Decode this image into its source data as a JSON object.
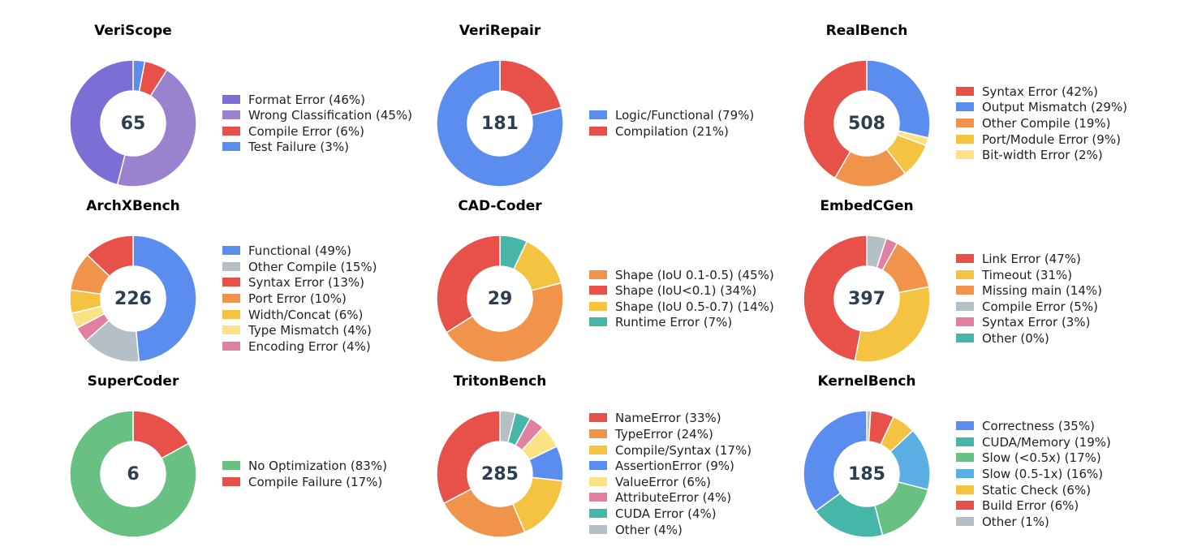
{
  "colors": {
    "purple_dark": "#7b6fd6",
    "purple_light": "#9b82cf",
    "red": "#e8504a",
    "blue": "#5b8def",
    "orange": "#f0944b",
    "yellow": "#f5c342",
    "light_yellow": "#fbe285",
    "gray": "#b4c0c6",
    "pink": "#e07f9f",
    "teal": "#45b6a7",
    "green": "#68c083",
    "sky": "#5aaee3",
    "center_text": "#2c3e50"
  },
  "chart_data": [
    {
      "type": "pie",
      "title": "VeriScope",
      "total": "65",
      "slices": [
        {
          "label": "Format Error",
          "value": 46,
          "color": "#7b6fd6"
        },
        {
          "label": "Wrong Classification",
          "value": 45,
          "color": "#9b82cf"
        },
        {
          "label": "Compile Error",
          "value": 6,
          "color": "#e8504a"
        },
        {
          "label": "Test Failure",
          "value": 3,
          "color": "#5b8def"
        }
      ],
      "draw_order": [
        3,
        2,
        1,
        0
      ],
      "legend_labels": [
        "Format Error  (46%)",
        "Wrong Classification  (45%)",
        "Compile Error  (6%)",
        "Test Failure  (3%)"
      ]
    },
    {
      "type": "pie",
      "title": "VeriRepair",
      "total": "181",
      "slices": [
        {
          "label": "Logic/Functional",
          "value": 79,
          "color": "#5b8def"
        },
        {
          "label": "Compilation",
          "value": 21,
          "color": "#e8504a"
        }
      ],
      "draw_order": [
        1,
        0
      ],
      "legend_labels": [
        "Logic/Functional  (79%)",
        "Compilation  (21%)"
      ]
    },
    {
      "type": "pie",
      "title": "RealBench",
      "total": "508",
      "slices": [
        {
          "label": "Syntax Error",
          "value": 42,
          "color": "#e8504a"
        },
        {
          "label": "Output Mismatch",
          "value": 29,
          "color": "#5b8def"
        },
        {
          "label": "Other Compile",
          "value": 19,
          "color": "#f0944b"
        },
        {
          "label": "Port/Module Error",
          "value": 9,
          "color": "#f5c342"
        },
        {
          "label": "Bit-width Error",
          "value": 2,
          "color": "#fbe285"
        }
      ],
      "draw_order": [
        1,
        4,
        3,
        2,
        0
      ],
      "legend_labels": [
        "Syntax Error  (42%)",
        "Output Mismatch  (29%)",
        "Other Compile  (19%)",
        "Port/Module Error  (9%)",
        "Bit-width Error  (2%)"
      ]
    },
    {
      "type": "pie",
      "title": "ArchXBench",
      "total": "226",
      "slices": [
        {
          "label": "Functional",
          "value": 49,
          "color": "#5b8def"
        },
        {
          "label": "Other Compile",
          "value": 15,
          "color": "#b4c0c6"
        },
        {
          "label": "Syntax Error",
          "value": 13,
          "color": "#e8504a"
        },
        {
          "label": "Port Error",
          "value": 10,
          "color": "#f0944b"
        },
        {
          "label": "Width/Concat",
          "value": 6,
          "color": "#f5c342"
        },
        {
          "label": "Type Mismatch",
          "value": 4,
          "color": "#fbe285"
        },
        {
          "label": "Encoding Error",
          "value": 4,
          "color": "#e07f9f"
        }
      ],
      "draw_order": [
        0,
        1,
        6,
        5,
        4,
        3,
        2
      ],
      "legend_labels": [
        "Functional  (49%)",
        "Other Compile  (15%)",
        "Syntax Error  (13%)",
        "Port Error  (10%)",
        "Width/Concat  (6%)",
        "Type Mismatch  (4%)",
        "Encoding Error  (4%)"
      ]
    },
    {
      "type": "pie",
      "title": "CAD-Coder",
      "total": "29",
      "slices": [
        {
          "label": "Shape (IoU 0.1-0.5)",
          "value": 45,
          "color": "#f0944b"
        },
        {
          "label": "Shape (IoU<0.1)",
          "value": 34,
          "color": "#e8504a"
        },
        {
          "label": "Shape (IoU 0.5-0.7)",
          "value": 14,
          "color": "#f5c342"
        },
        {
          "label": "Runtime Error",
          "value": 7,
          "color": "#45b6a7"
        }
      ],
      "draw_order": [
        3,
        2,
        0,
        1
      ],
      "legend_labels": [
        "Shape (IoU 0.1-0.5)  (45%)",
        "Shape (IoU<0.1)  (34%)",
        "Shape (IoU 0.5-0.7)  (14%)",
        "Runtime Error  (7%)"
      ]
    },
    {
      "type": "pie",
      "title": "EmbedCGen",
      "total": "397",
      "slices": [
        {
          "label": "Link Error",
          "value": 47,
          "color": "#e8504a"
        },
        {
          "label": "Timeout",
          "value": 31,
          "color": "#f5c342"
        },
        {
          "label": "Missing main",
          "value": 14,
          "color": "#f0944b"
        },
        {
          "label": "Compile Error",
          "value": 5,
          "color": "#b4c0c6"
        },
        {
          "label": "Syntax Error",
          "value": 3,
          "color": "#e07f9f"
        },
        {
          "label": "Other",
          "value": 0,
          "color": "#45b6a7"
        }
      ],
      "draw_order": [
        5,
        3,
        4,
        2,
        1,
        0
      ],
      "legend_labels": [
        "Link Error  (47%)",
        "Timeout  (31%)",
        "Missing main  (14%)",
        "Compile Error  (5%)",
        "Syntax Error  (3%)",
        "Other  (0%)"
      ]
    },
    {
      "type": "pie",
      "title": "SuperCoder",
      "total": "6",
      "slices": [
        {
          "label": "No Optimization",
          "value": 83,
          "color": "#68c083"
        },
        {
          "label": "Compile Failure",
          "value": 17,
          "color": "#e8504a"
        }
      ],
      "draw_order": [
        1,
        0
      ],
      "legend_labels": [
        "No Optimization  (83%)",
        "Compile Failure  (17%)"
      ]
    },
    {
      "type": "pie",
      "title": "TritonBench",
      "total": "285",
      "slices": [
        {
          "label": "NameError",
          "value": 33,
          "color": "#e8504a"
        },
        {
          "label": "TypeError",
          "value": 24,
          "color": "#f0944b"
        },
        {
          "label": "Compile/Syntax",
          "value": 17,
          "color": "#f5c342"
        },
        {
          "label": "AssertionError",
          "value": 9,
          "color": "#5b8def"
        },
        {
          "label": "ValueError",
          "value": 6,
          "color": "#fbe285"
        },
        {
          "label": "AttributeError",
          "value": 4,
          "color": "#e07f9f"
        },
        {
          "label": "CUDA Error",
          "value": 4,
          "color": "#45b6a7"
        },
        {
          "label": "Other",
          "value": 4,
          "color": "#b4c0c6"
        }
      ],
      "draw_order": [
        7,
        6,
        5,
        4,
        3,
        2,
        1,
        0
      ],
      "legend_labels": [
        "NameError  (33%)",
        "TypeError  (24%)",
        "Compile/Syntax  (17%)",
        "AssertionError  (9%)",
        "ValueError  (6%)",
        "AttributeError  (4%)",
        "CUDA Error  (4%)",
        "Other  (4%)"
      ]
    },
    {
      "type": "pie",
      "title": "KernelBench",
      "total": "185",
      "slices": [
        {
          "label": "Correctness",
          "value": 35,
          "color": "#5b8def"
        },
        {
          "label": "CUDA/Memory",
          "value": 19,
          "color": "#45b6a7"
        },
        {
          "label": "Slow (<0.5x)",
          "value": 17,
          "color": "#68c083"
        },
        {
          "label": "Slow (0.5-1x)",
          "value": 16,
          "color": "#5aaee3"
        },
        {
          "label": "Static Check",
          "value": 6,
          "color": "#f5c342"
        },
        {
          "label": "Build Error",
          "value": 6,
          "color": "#e8504a"
        },
        {
          "label": "Other",
          "value": 1,
          "color": "#b4c0c6"
        }
      ],
      "draw_order": [
        6,
        5,
        4,
        3,
        2,
        1,
        0
      ],
      "legend_labels": [
        "Correctness  (35%)",
        "CUDA/Memory  (19%)",
        "Slow (<0.5x)  (17%)",
        "Slow (0.5-1x)  (16%)",
        "Static Check  (6%)",
        "Build Error  (6%)",
        "Other  (1%)"
      ]
    }
  ]
}
